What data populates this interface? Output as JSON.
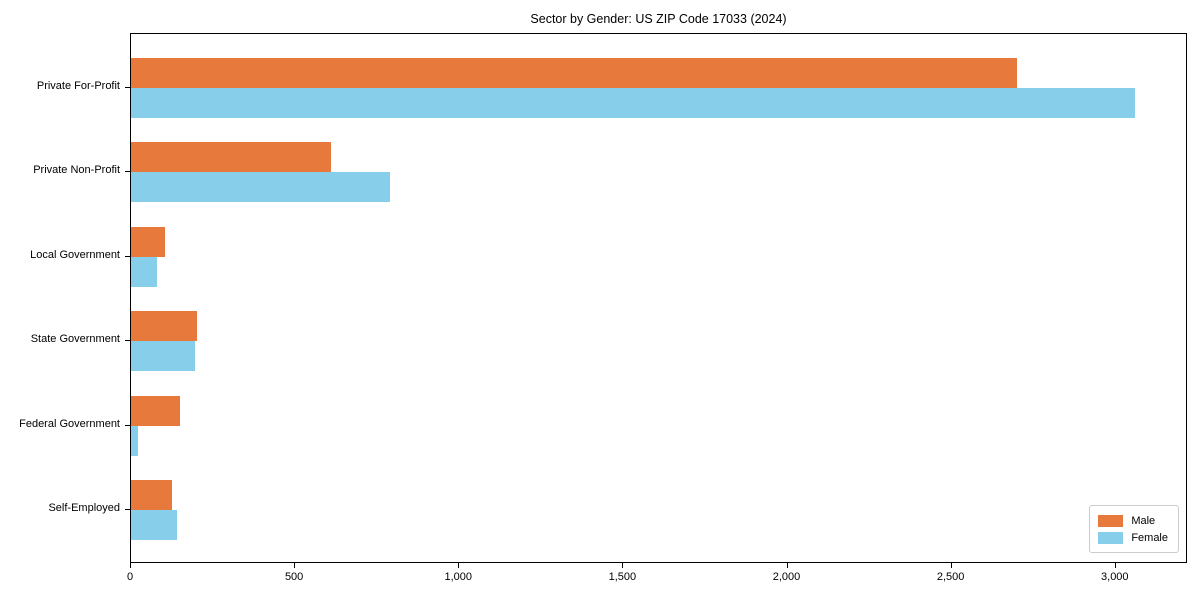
{
  "chart_data": {
    "type": "bar",
    "orientation": "horizontal",
    "title": "Sector by Gender: US ZIP Code 17033 (2024)",
    "xlabel": "",
    "ylabel": "",
    "categories": [
      "Private For-Profit",
      "Private Non-Profit",
      "Local Government",
      "State Government",
      "Federal Government",
      "Self-Employed"
    ],
    "series": [
      {
        "name": "Male",
        "color": "#e8793c",
        "values": [
          2700,
          610,
          105,
          200,
          150,
          125
        ]
      },
      {
        "name": "Female",
        "color": "#87ceeb",
        "values": [
          3060,
          790,
          80,
          195,
          20,
          140
        ]
      }
    ],
    "xlim": [
      0,
      3220
    ],
    "xticks": [
      0,
      500,
      1000,
      1500,
      2000,
      2500,
      3000
    ],
    "xtick_labels": [
      "0",
      "500",
      "1,000",
      "1,500",
      "2,000",
      "2,500",
      "3,000"
    ],
    "grid": false,
    "legend_position": "lower right",
    "background_color": "#ffffff",
    "axis_color": "#000000"
  }
}
